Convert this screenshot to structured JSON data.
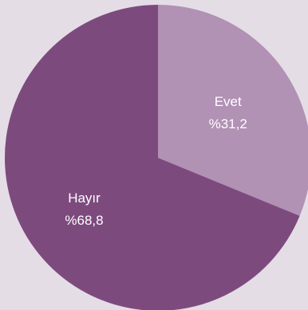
{
  "chart_data": {
    "type": "pie",
    "slices": [
      {
        "label": "Evet",
        "value_label": "%31,2",
        "value": 31.2,
        "color": "#b191b4"
      },
      {
        "label": "Hayır",
        "value_label": "%68,8",
        "value": 68.8,
        "color": "#7d4a7e"
      }
    ],
    "start": "top",
    "direction": "clockwise",
    "legend": "none"
  },
  "colors": {
    "background": "#e4dde6",
    "label_text": "#ffffff"
  }
}
